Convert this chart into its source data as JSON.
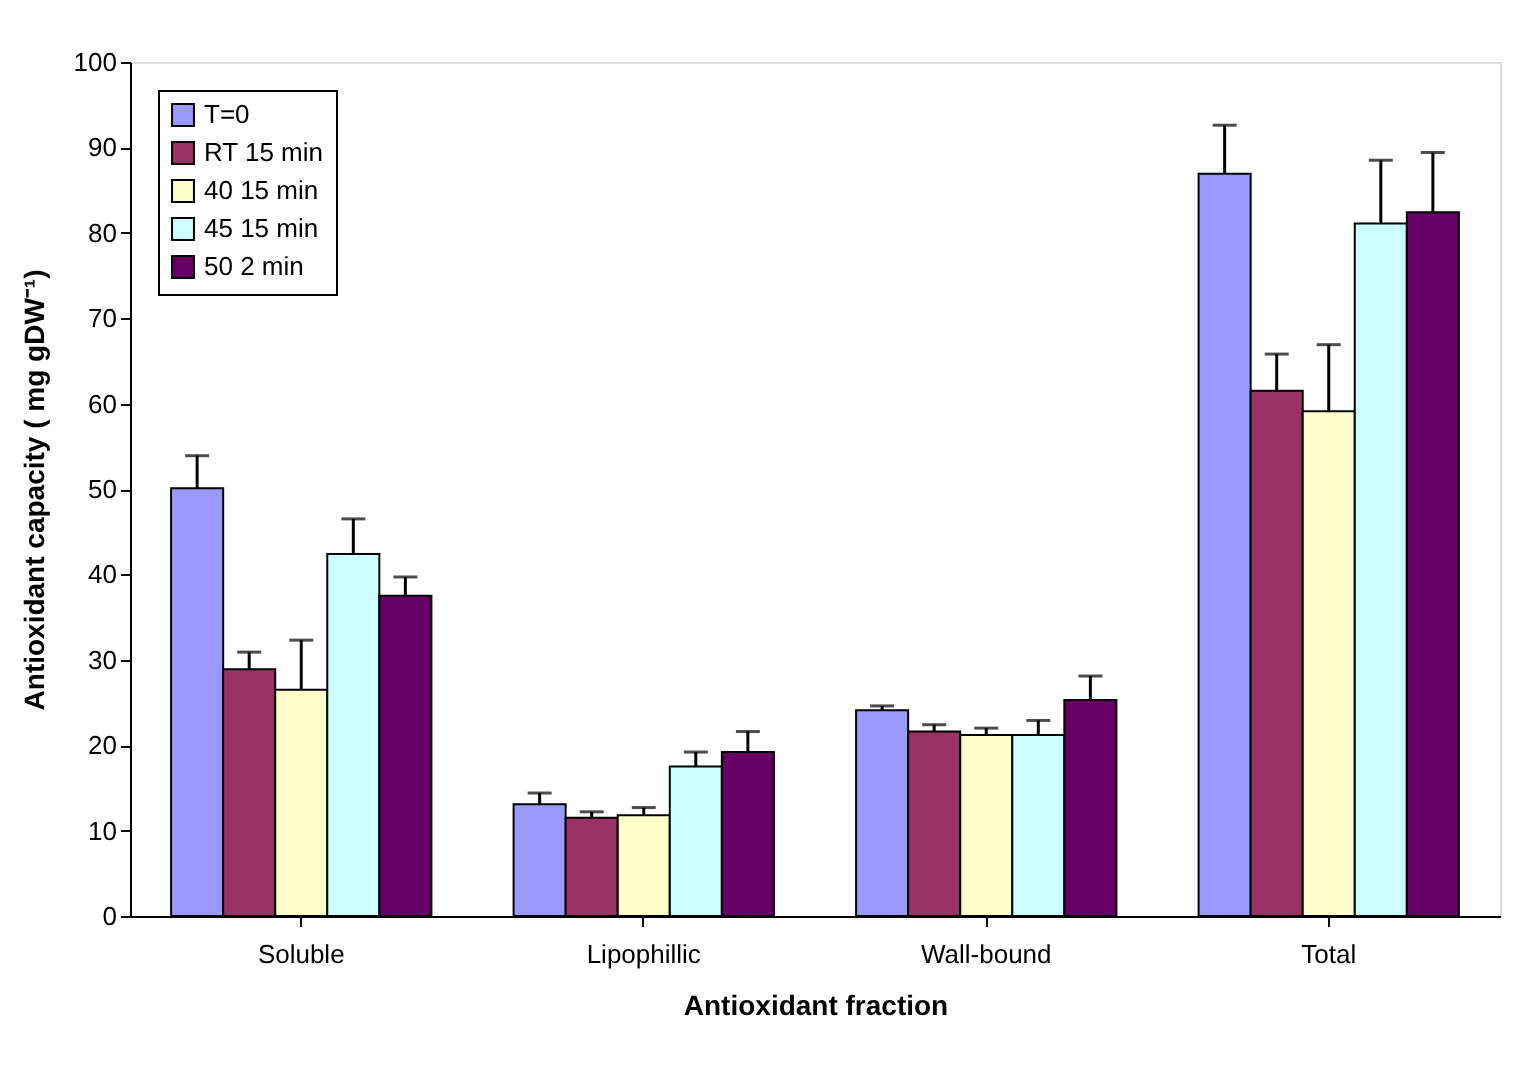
{
  "chart_data": {
    "type": "bar",
    "xlabel": "Antioxidant fraction",
    "ylabel": "Antioxidant capacity ( mg gDW⁻¹)",
    "categories": [
      "Soluble",
      "Lipophillic",
      "Wall-bound",
      "Total"
    ],
    "series": [
      {
        "name": "T=0",
        "color": "#9999ff",
        "values": [
          50.1,
          13.1,
          24.1,
          86.9
        ],
        "errors": [
          [
            50.1,
            53.9
          ],
          [
            13.1,
            14.4
          ],
          [
            24.1,
            24.6
          ],
          [
            86.9,
            92.6
          ]
        ]
      },
      {
        "name": "RT 15 min",
        "color": "#993366",
        "values": [
          28.9,
          11.5,
          21.6,
          61.5
        ],
        "errors": [
          [
            28.9,
            30.9
          ],
          [
            11.5,
            12.2
          ],
          [
            21.6,
            22.4
          ],
          [
            61.5,
            65.8
          ]
        ]
      },
      {
        "name": "40 15 min",
        "color": "#ffffcc",
        "values": [
          26.5,
          11.8,
          21.2,
          59.1
        ],
        "errors": [
          [
            26.5,
            32.3
          ],
          [
            11.8,
            12.7
          ],
          [
            21.2,
            22.0
          ],
          [
            59.1,
            66.9
          ]
        ]
      },
      {
        "name": "45 15 min",
        "color": "#ccffff",
        "values": [
          42.4,
          17.5,
          21.2,
          81.1
        ],
        "errors": [
          [
            42.4,
            46.5
          ],
          [
            17.5,
            19.2
          ],
          [
            21.2,
            22.9
          ],
          [
            81.1,
            88.5
          ]
        ]
      },
      {
        "name": "50 2 min",
        "color": "#660066",
        "values": [
          37.5,
          19.2,
          25.3,
          82.4
        ],
        "errors": [
          [
            37.5,
            39.7
          ],
          [
            19.2,
            21.6
          ],
          [
            25.3,
            28.1
          ],
          [
            82.4,
            89.4
          ]
        ]
      }
    ],
    "ylim": [
      0,
      100
    ],
    "yticks": [
      0,
      10,
      20,
      30,
      40,
      50,
      60,
      70,
      80,
      90,
      100
    ],
    "grid": false,
    "legend": "top left"
  }
}
